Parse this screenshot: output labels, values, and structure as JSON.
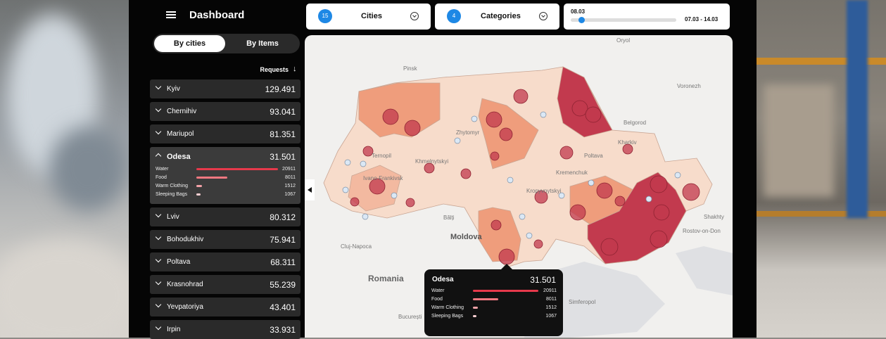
{
  "header": {
    "title": "Dashboard"
  },
  "tabs": [
    "By cities",
    "By Items"
  ],
  "sort_label": "Requests",
  "cities": [
    {
      "name": "Kyiv",
      "value": "129.491"
    },
    {
      "name": "Chernihiv",
      "value": "93.041"
    },
    {
      "name": "Mariupol",
      "value": "81.351"
    },
    {
      "name": "Odesa",
      "value": "31.501",
      "items": [
        {
          "name": "Water",
          "value": 20911
        },
        {
          "name": "Food",
          "value": 8011
        },
        {
          "name": "Warm Clothing",
          "value": 1512
        },
        {
          "name": "Sleeping Bags",
          "value": 1067
        }
      ]
    },
    {
      "name": "Lviv",
      "value": "80.312"
    },
    {
      "name": "Bohodukhiv",
      "value": "75.941"
    },
    {
      "name": "Poltava",
      "value": "68.311"
    },
    {
      "name": "Krasnohrad",
      "value": "55.239"
    },
    {
      "name": "Yevpatoriya",
      "value": "43.401"
    },
    {
      "name": "Irpin",
      "value": "33.931"
    }
  ],
  "filters": {
    "cities": {
      "count": 15,
      "label": "Cities"
    },
    "categories": {
      "count": 4,
      "label": "Categories"
    },
    "date": {
      "current": "08.03",
      "range": "07.03 - 14.03"
    }
  },
  "map": {
    "labels": [
      "Pinsk",
      "Zhytomyr",
      "Ternopil",
      "Khmelnytskyi",
      "Ivano-Frankivsk",
      "Bălți",
      "Moldova",
      "Cluj-Napoca",
      "Romania",
      "Kremenchuk",
      "Poltava",
      "Kharkiv",
      "Belgorod",
      "Voronezh",
      "Kropyvnytskyi",
      "Rostov-on-Don",
      "Shakhty",
      "Simferopol",
      "București",
      "Oryol"
    ]
  },
  "tooltip": {
    "title": "Odesa",
    "value": "31.501",
    "items": [
      {
        "name": "Water",
        "value": 20911
      },
      {
        "name": "Food",
        "value": 8011
      },
      {
        "name": "Warm Clothing",
        "value": 1512
      },
      {
        "name": "Sleeping Bags",
        "value": 1067
      }
    ]
  }
}
